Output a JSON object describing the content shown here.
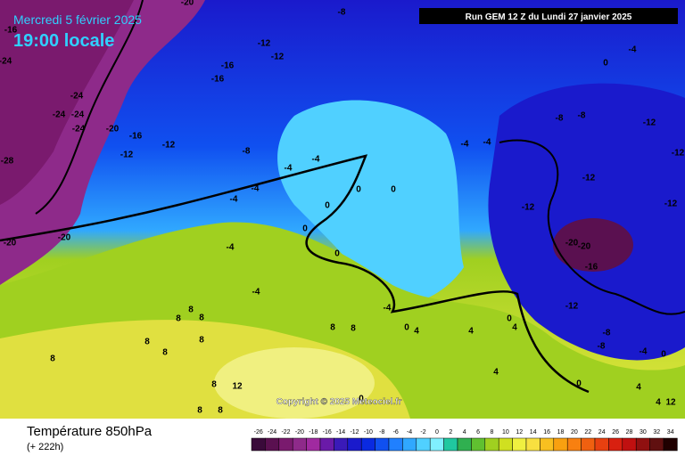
{
  "header": {
    "date": "Mercredi 5 février 2025",
    "time": "19:00 locale",
    "run": "Run GEM 12 Z du Lundi 27 janvier 2025",
    "copyright": "Copyright © 2025 Meteociel.fr"
  },
  "footer": {
    "title": "Température 850hPa",
    "lead": "(+ 222h)"
  },
  "legend": {
    "values": [
      -26,
      -24,
      -22,
      -20,
      -18,
      -16,
      -14,
      -12,
      -10,
      -8,
      -6,
      -4,
      -2,
      0,
      2,
      4,
      6,
      8,
      10,
      12,
      14,
      16,
      18,
      20,
      22,
      24,
      26,
      28,
      30,
      32,
      34
    ],
    "colors": [
      "#3a0a3a",
      "#5a1050",
      "#7a1a6e",
      "#8e2a8a",
      "#a02aa0",
      "#6a1aa8",
      "#3a1ab8",
      "#1a1acc",
      "#0a2ae0",
      "#1050f0",
      "#2080ff",
      "#30a8ff",
      "#50d0ff",
      "#80f0ff",
      "#20c8a0",
      "#30b050",
      "#60c030",
      "#a0d020",
      "#d0e020",
      "#f0f040",
      "#f8e040",
      "#f8c020",
      "#f8a010",
      "#f88010",
      "#f06010",
      "#e84010",
      "#d82010",
      "#c01010",
      "#901010",
      "#601010",
      "#200000"
    ]
  },
  "map": {
    "isotherm_labels": [
      -20,
      -8,
      -16,
      -12,
      -12,
      -24,
      -16,
      -16,
      -24,
      -24,
      -24,
      -24,
      -20,
      -16,
      -12,
      -12,
      -28,
      -8,
      -4,
      -4,
      -4,
      -4,
      0,
      0,
      0,
      0,
      0,
      -20,
      -20,
      -4,
      -4,
      -4,
      -4,
      -4,
      0,
      -8,
      -8,
      -12,
      -12,
      -12,
      -12,
      -12,
      -20,
      -20,
      -16,
      -12,
      -8,
      -8,
      -4,
      0,
      8,
      8,
      8,
      8,
      8,
      8,
      8,
      8,
      8,
      8,
      12,
      8,
      8,
      -4,
      0,
      4,
      4,
      0,
      4,
      4,
      0,
      4,
      4,
      12,
      0
    ]
  }
}
